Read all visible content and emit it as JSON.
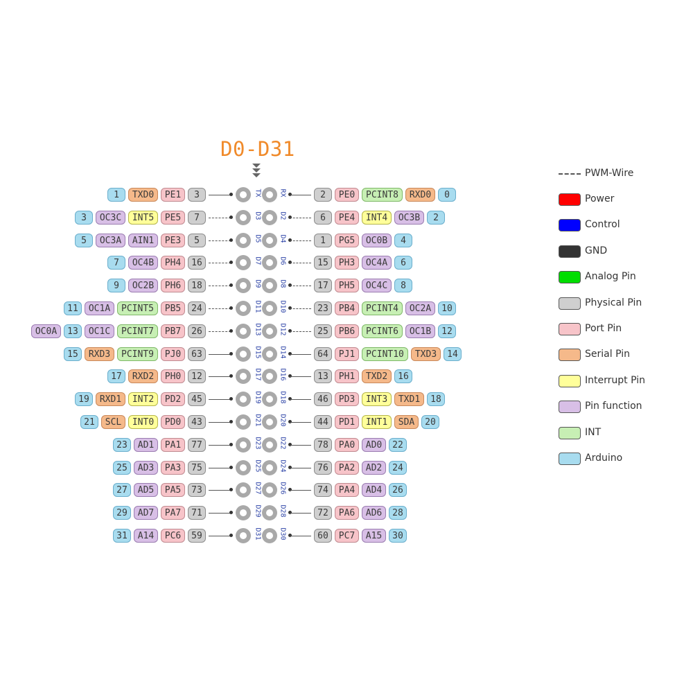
{
  "title": "D0-D31",
  "colors": {
    "arduino": "#a8dcef",
    "serial": "#f5b98a",
    "port": "#f7c4c9",
    "physical": "#cfcfcf",
    "interrupt": "#ffff9a",
    "function": "#d8bfe6",
    "pcint": "#c7efb4",
    "power": "#ff0000",
    "control": "#0000ff",
    "gnd": "#333333",
    "analog": "#00dd00"
  },
  "rows": [
    {
      "ld": "TX",
      "rd": "RX",
      "lpwm": false,
      "rpwm": false,
      "left": [
        [
          "1",
          "ard"
        ],
        [
          "TXD0",
          "ser"
        ],
        [
          "PE1",
          "prt"
        ],
        [
          "3",
          "phy"
        ]
      ],
      "right": [
        [
          "2",
          "phy"
        ],
        [
          "PE0",
          "prt"
        ],
        [
          "PCINT8",
          "pci"
        ],
        [
          "RXD0",
          "ser"
        ],
        [
          "0",
          "ard"
        ]
      ]
    },
    {
      "ld": "D3",
      "rd": "D2",
      "lpwm": true,
      "rpwm": true,
      "left": [
        [
          "3",
          "ard"
        ],
        [
          "OC3C",
          "fun"
        ],
        [
          "INT5",
          "int"
        ],
        [
          "PE5",
          "prt"
        ],
        [
          "7",
          "phy"
        ]
      ],
      "right": [
        [
          "6",
          "phy"
        ],
        [
          "PE4",
          "prt"
        ],
        [
          "INT4",
          "int"
        ],
        [
          "OC3B",
          "fun"
        ],
        [
          "2",
          "ard"
        ]
      ]
    },
    {
      "ld": "D5",
      "rd": "D4",
      "lpwm": true,
      "rpwm": true,
      "left": [
        [
          "5",
          "ard"
        ],
        [
          "OC3A",
          "fun"
        ],
        [
          "AIN1",
          "fun"
        ],
        [
          "PE3",
          "prt"
        ],
        [
          "5",
          "phy"
        ]
      ],
      "right": [
        [
          "1",
          "phy"
        ],
        [
          "PG5",
          "prt"
        ],
        [
          "OC0B",
          "fun"
        ],
        [
          "4",
          "ard"
        ]
      ]
    },
    {
      "ld": "D7",
      "rd": "D6",
      "lpwm": true,
      "rpwm": true,
      "left": [
        [
          "7",
          "ard"
        ],
        [
          "OC4B",
          "fun"
        ],
        [
          "PH4",
          "prt"
        ],
        [
          "16",
          "phy"
        ]
      ],
      "right": [
        [
          "15",
          "phy"
        ],
        [
          "PH3",
          "prt"
        ],
        [
          "OC4A",
          "fun"
        ],
        [
          "6",
          "ard"
        ]
      ]
    },
    {
      "ld": "D9",
      "rd": "D8",
      "lpwm": true,
      "rpwm": true,
      "left": [
        [
          "9",
          "ard"
        ],
        [
          "OC2B",
          "fun"
        ],
        [
          "PH6",
          "prt"
        ],
        [
          "18",
          "phy"
        ]
      ],
      "right": [
        [
          "17",
          "phy"
        ],
        [
          "PH5",
          "prt"
        ],
        [
          "OC4C",
          "fun"
        ],
        [
          "8",
          "ard"
        ]
      ]
    },
    {
      "ld": "D11",
      "rd": "D10",
      "lpwm": true,
      "rpwm": true,
      "left": [
        [
          "11",
          "ard"
        ],
        [
          "OC1A",
          "fun"
        ],
        [
          "PCINT5",
          "pci"
        ],
        [
          "PB5",
          "prt"
        ],
        [
          "24",
          "phy"
        ]
      ],
      "right": [
        [
          "23",
          "phy"
        ],
        [
          "PB4",
          "prt"
        ],
        [
          "PCINT4",
          "pci"
        ],
        [
          "OC2A",
          "fun"
        ],
        [
          "10",
          "ard"
        ]
      ]
    },
    {
      "ld": "D13",
      "rd": "D12",
      "lpwm": true,
      "rpwm": true,
      "left": [
        [
          "OC0A",
          "fun"
        ],
        [
          "13",
          "ard"
        ],
        [
          "OC1C",
          "fun"
        ],
        [
          "PCINT7",
          "pci"
        ],
        [
          "PB7",
          "prt"
        ],
        [
          "26",
          "phy"
        ]
      ],
      "right": [
        [
          "25",
          "phy"
        ],
        [
          "PB6",
          "prt"
        ],
        [
          "PCINT6",
          "pci"
        ],
        [
          "OC1B",
          "fun"
        ],
        [
          "12",
          "ard"
        ]
      ]
    },
    {
      "ld": "D15",
      "rd": "D14",
      "lpwm": false,
      "rpwm": false,
      "left": [
        [
          "15",
          "ard"
        ],
        [
          "RXD3",
          "ser"
        ],
        [
          "PCINT9",
          "pci"
        ],
        [
          "PJ0",
          "prt"
        ],
        [
          "63",
          "phy"
        ]
      ],
      "right": [
        [
          "64",
          "phy"
        ],
        [
          "PJ1",
          "prt"
        ],
        [
          "PCINT10",
          "pci"
        ],
        [
          "TXD3",
          "ser"
        ],
        [
          "14",
          "ard"
        ]
      ]
    },
    {
      "ld": "D17",
      "rd": "D16",
      "lpwm": false,
      "rpwm": false,
      "left": [
        [
          "17",
          "ard"
        ],
        [
          "RXD2",
          "ser"
        ],
        [
          "PH0",
          "prt"
        ],
        [
          "12",
          "phy"
        ]
      ],
      "right": [
        [
          "13",
          "phy"
        ],
        [
          "PH1",
          "prt"
        ],
        [
          "TXD2",
          "ser"
        ],
        [
          "16",
          "ard"
        ]
      ]
    },
    {
      "ld": "D19",
      "rd": "D18",
      "lpwm": false,
      "rpwm": false,
      "left": [
        [
          "19",
          "ard"
        ],
        [
          "RXD1",
          "ser"
        ],
        [
          "INT2",
          "int"
        ],
        [
          "PD2",
          "prt"
        ],
        [
          "45",
          "phy"
        ]
      ],
      "right": [
        [
          "46",
          "phy"
        ],
        [
          "PD3",
          "prt"
        ],
        [
          "INT3",
          "int"
        ],
        [
          "TXD1",
          "ser"
        ],
        [
          "18",
          "ard"
        ]
      ]
    },
    {
      "ld": "D21",
      "rd": "D20",
      "lpwm": false,
      "rpwm": false,
      "left": [
        [
          "21",
          "ard"
        ],
        [
          "SCL",
          "ser"
        ],
        [
          "INT0",
          "int"
        ],
        [
          "PD0",
          "prt"
        ],
        [
          "43",
          "phy"
        ]
      ],
      "right": [
        [
          "44",
          "phy"
        ],
        [
          "PD1",
          "prt"
        ],
        [
          "INT1",
          "int"
        ],
        [
          "SDA",
          "ser"
        ],
        [
          "20",
          "ard"
        ]
      ]
    },
    {
      "ld": "D23",
      "rd": "D22",
      "lpwm": false,
      "rpwm": false,
      "left": [
        [
          "23",
          "ard"
        ],
        [
          "AD1",
          "fun"
        ],
        [
          "PA1",
          "prt"
        ],
        [
          "77",
          "phy"
        ]
      ],
      "right": [
        [
          "78",
          "phy"
        ],
        [
          "PA0",
          "prt"
        ],
        [
          "AD0",
          "fun"
        ],
        [
          "22",
          "ard"
        ]
      ]
    },
    {
      "ld": "D25",
      "rd": "D24",
      "lpwm": false,
      "rpwm": false,
      "left": [
        [
          "25",
          "ard"
        ],
        [
          "AD3",
          "fun"
        ],
        [
          "PA3",
          "prt"
        ],
        [
          "75",
          "phy"
        ]
      ],
      "right": [
        [
          "76",
          "phy"
        ],
        [
          "PA2",
          "prt"
        ],
        [
          "AD2",
          "fun"
        ],
        [
          "24",
          "ard"
        ]
      ]
    },
    {
      "ld": "D27",
      "rd": "D26",
      "lpwm": false,
      "rpwm": false,
      "left": [
        [
          "27",
          "ard"
        ],
        [
          "AD5",
          "fun"
        ],
        [
          "PA5",
          "prt"
        ],
        [
          "73",
          "phy"
        ]
      ],
      "right": [
        [
          "74",
          "phy"
        ],
        [
          "PA4",
          "prt"
        ],
        [
          "AD4",
          "fun"
        ],
        [
          "26",
          "ard"
        ]
      ]
    },
    {
      "ld": "D29",
      "rd": "D28",
      "lpwm": false,
      "rpwm": false,
      "left": [
        [
          "29",
          "ard"
        ],
        [
          "AD7",
          "fun"
        ],
        [
          "PA7",
          "prt"
        ],
        [
          "71",
          "phy"
        ]
      ],
      "right": [
        [
          "72",
          "phy"
        ],
        [
          "PA6",
          "prt"
        ],
        [
          "AD6",
          "fun"
        ],
        [
          "28",
          "ard"
        ]
      ]
    },
    {
      "ld": "D31",
      "rd": "D30",
      "lpwm": false,
      "rpwm": false,
      "left": [
        [
          "31",
          "ard"
        ],
        [
          "A14",
          "fun"
        ],
        [
          "PC6",
          "prt"
        ],
        [
          "59",
          "phy"
        ]
      ],
      "right": [
        [
          "60",
          "phy"
        ],
        [
          "PC7",
          "prt"
        ],
        [
          "A15",
          "fun"
        ],
        [
          "30",
          "ard"
        ]
      ]
    }
  ],
  "legend": {
    "pwm_label": "PWM-Wire",
    "items": [
      {
        "label": "Power",
        "key": "power"
      },
      {
        "label": "Control",
        "key": "control"
      },
      {
        "label": "GND",
        "key": "gnd"
      },
      {
        "label": "Analog Pin",
        "key": "analog"
      },
      {
        "label": "Physical Pin",
        "key": "physical"
      },
      {
        "label": "Port Pin",
        "key": "port"
      },
      {
        "label": "Serial Pin",
        "key": "serial"
      },
      {
        "label": "Interrupt Pin",
        "key": "interrupt"
      },
      {
        "label": "Pin function",
        "key": "function"
      },
      {
        "label": "INT",
        "key": "pcint"
      },
      {
        "label": "Arduino",
        "key": "arduino"
      }
    ]
  }
}
